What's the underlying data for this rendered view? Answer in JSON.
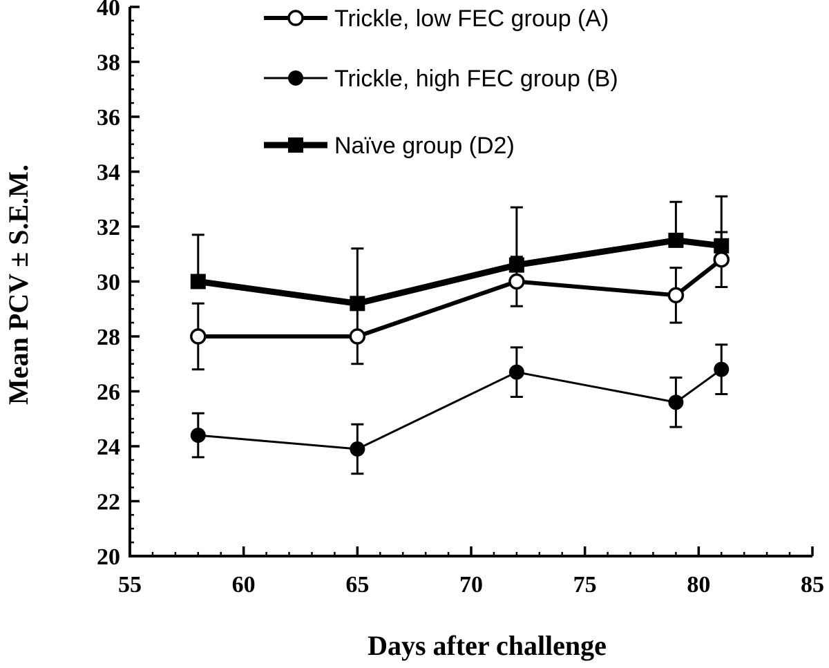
{
  "chart_data": {
    "type": "line",
    "xlabel": "Days after challenge",
    "ylabel": "Mean PCV ± S.E.M.",
    "xlim": [
      55,
      85
    ],
    "ylim": [
      20,
      40
    ],
    "x_ticks": [
      55,
      60,
      65,
      70,
      75,
      80,
      85
    ],
    "y_ticks": [
      20,
      22,
      24,
      26,
      28,
      30,
      32,
      34,
      36,
      38,
      40
    ],
    "x_minor_step": 1,
    "y_minor_step": 0.5,
    "grid": false,
    "legend_position": "top-right",
    "series": [
      {
        "name": "Trickle, low FEC group (A)",
        "marker": "open-circle",
        "line_weight": "medium",
        "x": [
          58,
          65,
          72,
          79,
          81
        ],
        "y": [
          28.0,
          28.0,
          30.0,
          29.5,
          30.8
        ],
        "error": [
          1.2,
          1.0,
          0.9,
          1.0,
          1.0
        ],
        "error_direction": "both"
      },
      {
        "name": "Trickle, high FEC group (B)",
        "marker": "filled-circle",
        "line_weight": "thin",
        "x": [
          58,
          65,
          72,
          79,
          81
        ],
        "y": [
          24.4,
          23.9,
          26.7,
          25.6,
          26.8
        ],
        "error": [
          0.8,
          0.9,
          0.9,
          0.9,
          0.9
        ],
        "error_direction": "both"
      },
      {
        "name": "Naïve group (D2)",
        "marker": "filled-square",
        "line_weight": "thick",
        "x": [
          58,
          65,
          72,
          79,
          81
        ],
        "y": [
          30.0,
          29.2,
          30.6,
          31.5,
          31.3
        ],
        "error": [
          1.7,
          2.0,
          2.1,
          1.4,
          1.8
        ],
        "error_direction": "up"
      }
    ]
  }
}
